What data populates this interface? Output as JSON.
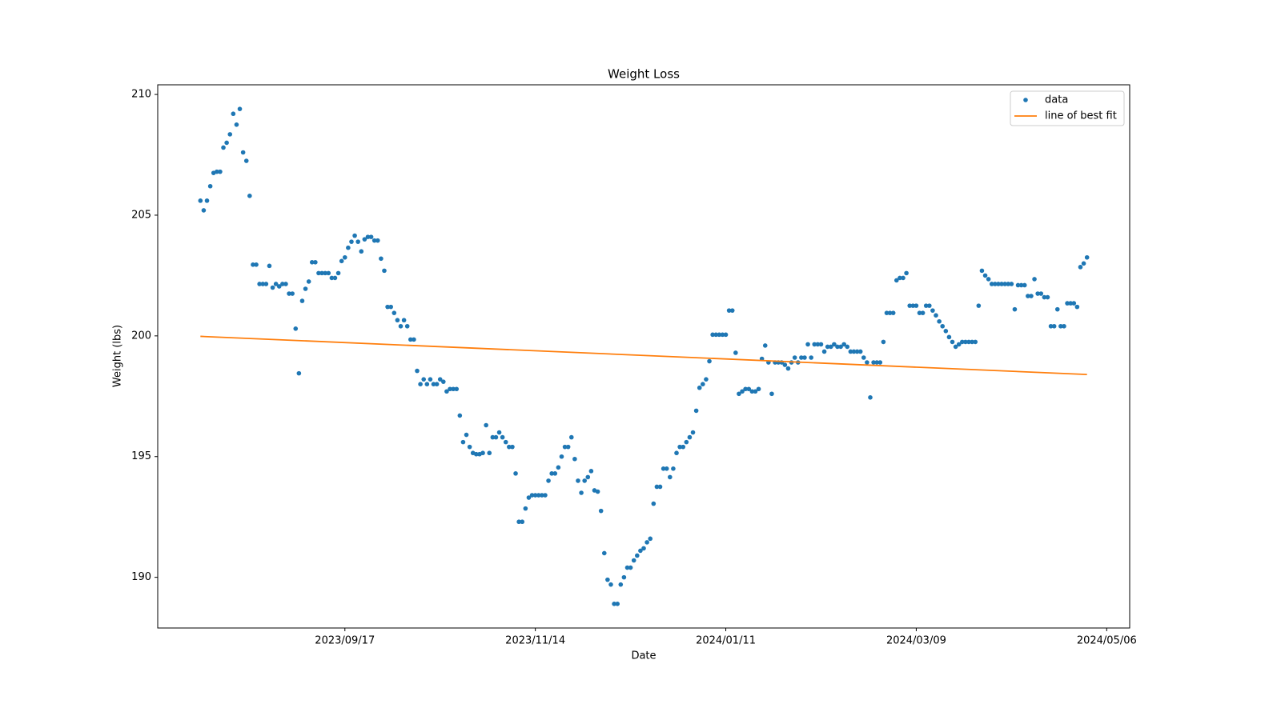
{
  "chart_data": {
    "type": "scatter",
    "title": "Weight Loss",
    "x_label": "Date",
    "y_label": "Weight (lbs)",
    "xlim": [
      "2023/07/22",
      "2024/05/13"
    ],
    "xticks": [
      "2023/09/17",
      "2023/11/14",
      "2024/01/11",
      "2024/03/09",
      "2024/05/06"
    ],
    "ylim": [
      187.9,
      210.4
    ],
    "yticks": [
      190,
      195,
      200,
      205,
      210
    ],
    "legend": "upper right",
    "series": [
      {
        "name": "data",
        "type": "scatter",
        "color": "#1f77b4",
        "x": [
          "2023/08/04",
          "2023/08/05",
          "2023/08/06",
          "2023/08/07",
          "2023/08/08",
          "2023/08/09",
          "2023/08/10",
          "2023/08/11",
          "2023/08/12",
          "2023/08/13",
          "2023/08/14",
          "2023/08/15",
          "2023/08/16",
          "2023/08/17",
          "2023/08/18",
          "2023/08/19",
          "2023/08/20",
          "2023/08/21",
          "2023/08/22",
          "2023/08/23",
          "2023/08/24",
          "2023/08/25",
          "2023/08/26",
          "2023/08/27",
          "2023/08/28",
          "2023/08/29",
          "2023/08/30",
          "2023/08/31",
          "2023/09/01",
          "2023/09/02",
          "2023/09/03",
          "2023/09/04",
          "2023/09/05",
          "2023/09/06",
          "2023/09/07",
          "2023/09/08",
          "2023/09/09",
          "2023/09/10",
          "2023/09/11",
          "2023/09/12",
          "2023/09/13",
          "2023/09/14",
          "2023/09/15",
          "2023/09/16",
          "2023/09/17",
          "2023/09/18",
          "2023/09/19",
          "2023/09/20",
          "2023/09/21",
          "2023/09/22",
          "2023/09/23",
          "2023/09/24",
          "2023/09/25",
          "2023/09/26",
          "2023/09/27",
          "2023/09/28",
          "2023/09/29",
          "2023/09/30",
          "2023/10/01",
          "2023/10/02",
          "2023/10/03",
          "2023/10/04",
          "2023/10/05",
          "2023/10/06",
          "2023/10/07",
          "2023/10/08",
          "2023/10/09",
          "2023/10/10",
          "2023/10/11",
          "2023/10/12",
          "2023/10/13",
          "2023/10/14",
          "2023/10/15",
          "2023/10/16",
          "2023/10/17",
          "2023/10/18",
          "2023/10/19",
          "2023/10/20",
          "2023/10/21",
          "2023/10/22",
          "2023/10/23",
          "2023/10/24",
          "2023/10/25",
          "2023/10/26",
          "2023/10/27",
          "2023/10/28",
          "2023/10/29",
          "2023/10/30",
          "2023/10/31",
          "2023/11/01",
          "2023/11/02",
          "2023/11/03",
          "2023/11/04",
          "2023/11/05",
          "2023/11/06",
          "2023/11/07",
          "2023/11/08",
          "2023/11/09",
          "2023/11/10",
          "2023/11/11",
          "2023/11/12",
          "2023/11/13",
          "2023/11/14",
          "2023/11/15",
          "2023/11/16",
          "2023/11/17",
          "2023/11/18",
          "2023/11/19",
          "2023/11/20",
          "2023/11/21",
          "2023/11/22",
          "2023/11/23",
          "2023/11/24",
          "2023/11/25",
          "2023/11/26",
          "2023/11/27",
          "2023/11/28",
          "2023/11/29",
          "2023/11/30",
          "2023/12/01",
          "2023/12/02",
          "2023/12/03",
          "2023/12/04",
          "2023/12/05",
          "2023/12/06",
          "2023/12/07",
          "2023/12/08",
          "2023/12/09",
          "2023/12/10",
          "2023/12/11",
          "2023/12/12",
          "2023/12/13",
          "2023/12/14",
          "2023/12/15",
          "2023/12/16",
          "2023/12/17",
          "2023/12/18",
          "2023/12/19",
          "2023/12/20",
          "2023/12/21",
          "2023/12/22",
          "2023/12/23",
          "2023/12/24",
          "2023/12/25",
          "2023/12/26",
          "2023/12/27",
          "2023/12/28",
          "2023/12/29",
          "2023/12/30",
          "2023/12/31",
          "2024/01/01",
          "2024/01/02",
          "2024/01/03",
          "2024/01/04",
          "2024/01/05",
          "2024/01/06",
          "2024/01/07",
          "2024/01/08",
          "2024/01/09",
          "2024/01/10",
          "2024/01/11",
          "2024/01/12",
          "2024/01/13",
          "2024/01/14",
          "2024/01/15",
          "2024/01/16",
          "2024/01/17",
          "2024/01/18",
          "2024/01/19",
          "2024/01/20",
          "2024/01/21",
          "2024/01/22",
          "2024/01/23",
          "2024/01/24",
          "2024/01/25",
          "2024/01/26",
          "2024/01/27",
          "2024/01/28",
          "2024/01/29",
          "2024/01/30",
          "2024/01/31",
          "2024/02/01",
          "2024/02/02",
          "2024/02/03",
          "2024/02/04",
          "2024/02/05",
          "2024/02/06",
          "2024/02/07",
          "2024/02/08",
          "2024/02/09",
          "2024/02/10",
          "2024/02/11",
          "2024/02/12",
          "2024/02/13",
          "2024/02/14",
          "2024/02/15",
          "2024/02/16",
          "2024/02/17",
          "2024/02/18",
          "2024/02/19",
          "2024/02/20",
          "2024/02/21",
          "2024/02/22",
          "2024/02/23",
          "2024/02/24",
          "2024/02/25",
          "2024/02/26",
          "2024/02/27",
          "2024/02/28",
          "2024/02/29",
          "2024/03/01",
          "2024/03/02",
          "2024/03/03",
          "2024/03/04",
          "2024/03/05",
          "2024/03/06",
          "2024/03/07",
          "2024/03/08",
          "2024/03/09",
          "2024/03/10",
          "2024/03/11",
          "2024/03/12",
          "2024/03/13",
          "2024/03/14",
          "2024/03/15",
          "2024/03/16",
          "2024/03/17",
          "2024/03/18",
          "2024/03/19",
          "2024/03/20",
          "2024/03/21",
          "2024/03/22",
          "2024/03/23",
          "2024/03/24",
          "2024/03/25",
          "2024/03/26",
          "2024/03/27",
          "2024/03/28",
          "2024/03/29",
          "2024/03/30",
          "2024/03/31",
          "2024/04/01",
          "2024/04/02",
          "2024/04/03",
          "2024/04/04",
          "2024/04/05",
          "2024/04/06",
          "2024/04/07",
          "2024/04/08",
          "2024/04/09",
          "2024/04/10",
          "2024/04/11",
          "2024/04/12",
          "2024/04/13",
          "2024/04/14",
          "2024/04/15",
          "2024/04/16",
          "2024/04/17",
          "2024/04/18",
          "2024/04/19",
          "2024/04/20",
          "2024/04/21",
          "2024/04/22",
          "2024/04/23",
          "2024/04/24",
          "2024/04/25",
          "2024/04/26",
          "2024/04/27",
          "2024/04/28",
          "2024/04/29",
          "2024/04/30"
        ],
        "values": [
          205.6,
          205.2,
          205.6,
          206.2,
          206.75,
          206.8,
          206.8,
          207.8,
          208.0,
          208.35,
          209.2,
          208.75,
          209.4,
          207.6,
          207.25,
          205.8,
          202.95,
          202.95,
          202.15,
          202.15,
          202.15,
          202.9,
          202.0,
          202.15,
          202.05,
          202.15,
          202.15,
          201.75,
          201.75,
          200.3,
          198.45,
          201.45,
          201.95,
          202.25,
          203.05,
          203.05,
          202.6,
          202.6,
          202.6,
          202.6,
          202.4,
          202.4,
          202.6,
          203.1,
          203.25,
          203.65,
          203.9,
          204.15,
          203.9,
          203.5,
          204.0,
          204.1,
          204.1,
          203.95,
          203.95,
          203.2,
          202.7,
          201.2,
          201.2,
          200.95,
          200.65,
          200.4,
          200.65,
          200.4,
          199.85,
          199.85,
          198.55,
          198.0,
          198.2,
          198.0,
          198.2,
          198.0,
          198.0,
          198.2,
          198.1,
          197.7,
          197.8,
          197.8,
          197.8,
          196.7,
          195.6,
          195.9,
          195.4,
          195.15,
          195.1,
          195.1,
          195.15,
          196.3,
          195.15,
          195.8,
          195.8,
          196.0,
          195.8,
          195.6,
          195.4,
          195.4,
          194.3,
          192.3,
          192.3,
          192.85,
          193.3,
          193.4,
          193.4,
          193.4,
          193.4,
          193.4,
          194.0,
          194.3,
          194.3,
          194.55,
          195.0,
          195.4,
          195.4,
          195.8,
          194.9,
          194.0,
          193.5,
          194.0,
          194.15,
          194.4,
          193.6,
          193.55,
          192.75,
          191.0,
          189.9,
          189.7,
          188.9,
          188.9,
          189.7,
          190.0,
          190.4,
          190.4,
          190.7,
          190.9,
          191.1,
          191.2,
          191.45,
          191.6,
          193.05,
          193.75,
          193.75,
          194.5,
          194.5,
          194.15,
          194.5,
          195.15,
          195.4,
          195.4,
          195.6,
          195.8,
          196.0,
          196.9,
          197.85,
          198.0,
          198.2,
          198.95,
          200.05,
          200.05,
          200.05,
          200.05,
          200.05,
          201.05,
          201.05,
          199.3,
          197.6,
          197.7,
          197.8,
          197.8,
          197.7,
          197.7,
          197.8,
          199.05,
          199.6,
          198.9,
          197.6,
          198.9,
          198.9,
          198.9,
          198.8,
          198.65,
          198.9,
          199.1,
          198.9,
          199.1,
          199.1,
          199.65,
          199.1,
          199.65,
          199.65,
          199.65,
          199.35,
          199.55,
          199.55,
          199.65,
          199.55,
          199.55,
          199.65,
          199.55,
          199.35,
          199.35,
          199.35,
          199.35,
          199.1,
          198.9,
          197.45,
          198.9,
          198.9,
          198.9,
          199.75,
          200.95,
          200.95,
          200.95,
          202.3,
          202.4,
          202.4,
          202.6,
          201.25,
          201.25,
          201.25,
          200.95,
          200.95,
          201.25,
          201.25,
          201.05,
          200.85,
          200.6,
          200.4,
          200.2,
          199.95,
          199.75,
          199.55,
          199.65,
          199.75,
          199.75,
          199.75,
          199.75,
          199.75,
          201.25,
          202.7,
          202.5,
          202.35,
          202.15,
          202.15,
          202.15,
          202.15,
          202.15,
          202.15,
          202.15,
          201.1,
          202.1,
          202.1,
          202.1,
          201.65,
          201.65,
          202.35,
          201.75,
          201.75,
          201.6,
          201.6,
          200.4,
          200.4,
          201.1,
          200.4,
          200.4,
          201.35,
          201.35,
          201.35,
          201.2,
          202.85,
          203.0,
          203.25
        ]
      },
      {
        "name": "line of best fit",
        "type": "line",
        "color": "#ff7f0e",
        "x": [
          "2023/08/04",
          "2024/04/30"
        ],
        "values": [
          199.98,
          198.4
        ]
      }
    ]
  }
}
